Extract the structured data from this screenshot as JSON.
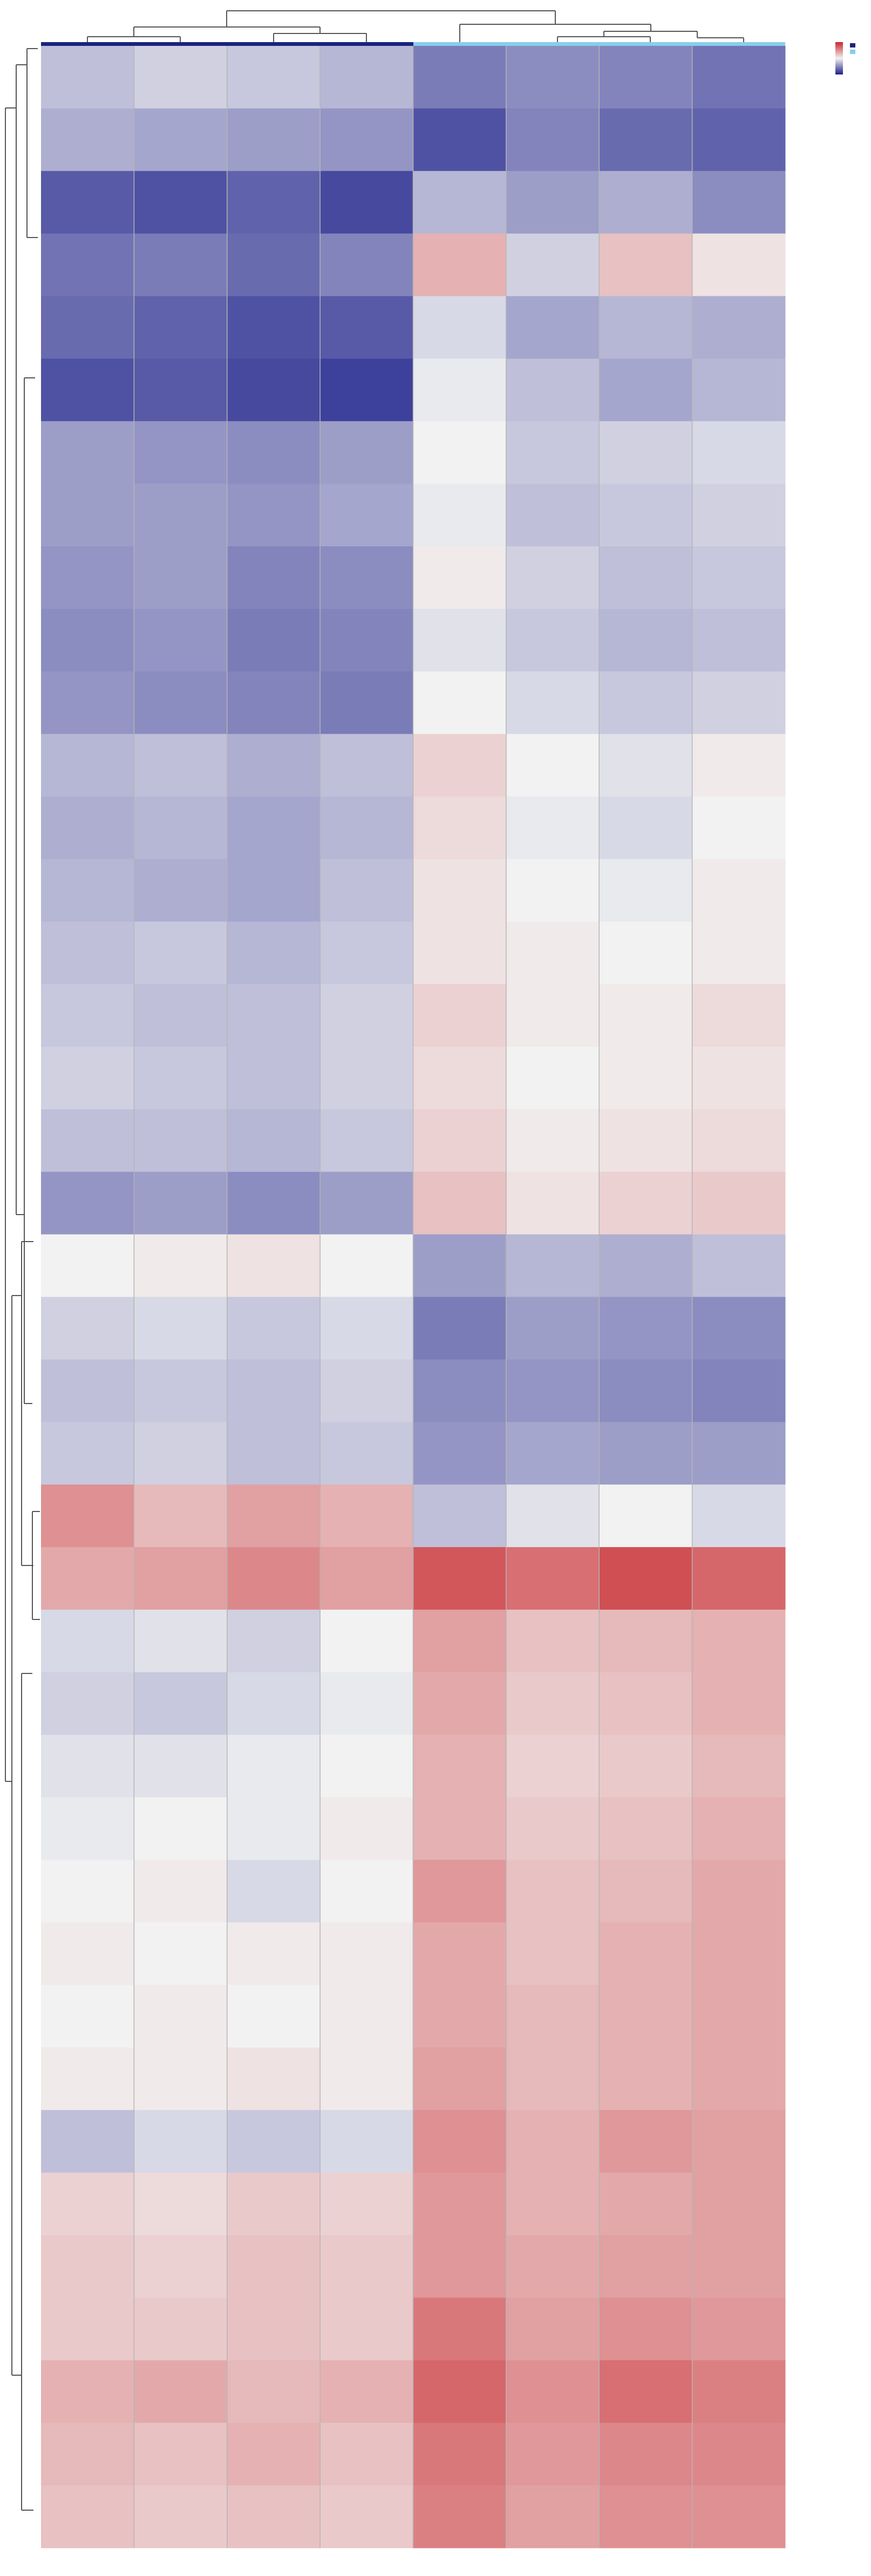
{
  "chart_data": {
    "type": "heatmap",
    "categories": [
      null,
      null,
      null,
      null,
      null,
      null,
      null,
      null
    ],
    "zlim": [
      -2.5,
      2.5
    ],
    "colors": [
      "#1c1f8a",
      "#f2f2f2",
      "#c8262b"
    ],
    "values": [
      [
        -0.6,
        -0.4,
        -0.5,
        -0.7,
        -1.4,
        -1.2,
        -1.3,
        -1.5
      ],
      [
        -0.8,
        -0.9,
        -1.0,
        -1.1,
        -1.9,
        -1.3,
        -1.6,
        -1.7
      ],
      [
        -1.8,
        -1.9,
        -1.7,
        -2.0,
        -0.7,
        -1.0,
        -0.8,
        -1.2
      ],
      [
        -1.5,
        -1.4,
        -1.6,
        -1.3,
        0.8,
        -0.4,
        0.6,
        0.2
      ],
      [
        -1.6,
        -1.7,
        -1.9,
        -1.8,
        -0.3,
        -0.9,
        -0.7,
        -0.8
      ],
      [
        -1.9,
        -1.8,
        -2.0,
        -2.1,
        -0.1,
        -0.6,
        -0.9,
        -0.7
      ],
      [
        -1.0,
        -1.1,
        -1.2,
        -1.0,
        0.0,
        -0.5,
        -0.4,
        -0.3
      ],
      [
        -1.0,
        -1.0,
        -1.1,
        -0.9,
        -0.1,
        -0.6,
        -0.5,
        -0.4
      ],
      [
        -1.1,
        -1.0,
        -1.3,
        -1.2,
        0.1,
        -0.4,
        -0.6,
        -0.5
      ],
      [
        -1.2,
        -1.1,
        -1.4,
        -1.3,
        -0.2,
        -0.5,
        -0.7,
        -0.6
      ],
      [
        -1.1,
        -1.2,
        -1.3,
        -1.4,
        0.0,
        -0.3,
        -0.5,
        -0.4
      ],
      [
        -0.7,
        -0.6,
        -0.8,
        -0.6,
        0.4,
        0.0,
        -0.2,
        0.1
      ],
      [
        -0.8,
        -0.7,
        -0.9,
        -0.7,
        0.3,
        -0.1,
        -0.3,
        0.0
      ],
      [
        -0.7,
        -0.8,
        -0.9,
        -0.6,
        0.2,
        0.0,
        -0.1,
        0.1
      ],
      [
        -0.6,
        -0.5,
        -0.7,
        -0.5,
        0.2,
        0.1,
        0.0,
        0.1
      ],
      [
        -0.5,
        -0.6,
        -0.6,
        -0.4,
        0.4,
        0.1,
        0.1,
        0.3
      ],
      [
        -0.4,
        -0.5,
        -0.6,
        -0.4,
        0.3,
        0.0,
        0.1,
        0.2
      ],
      [
        -0.6,
        -0.6,
        -0.7,
        -0.5,
        0.4,
        0.1,
        0.2,
        0.3
      ],
      [
        -1.1,
        -1.0,
        -1.2,
        -1.0,
        0.6,
        0.2,
        0.4,
        0.5
      ],
      [
        0.0,
        0.1,
        0.2,
        0.0,
        -1.0,
        -0.7,
        -0.8,
        -0.6
      ],
      [
        -0.4,
        -0.3,
        -0.5,
        -0.3,
        -1.4,
        -1.0,
        -1.1,
        -1.2
      ],
      [
        -0.6,
        -0.5,
        -0.6,
        -0.4,
        -1.2,
        -1.1,
        -1.2,
        -1.3
      ],
      [
        -0.5,
        -0.4,
        -0.6,
        -0.5,
        -1.1,
        -0.9,
        -1.0,
        -1.0
      ],
      [
        1.2,
        0.7,
        1.0,
        0.8,
        -0.6,
        -0.2,
        0.0,
        -0.3
      ],
      [
        0.9,
        1.0,
        1.3,
        1.0,
        1.9,
        1.6,
        2.0,
        1.7
      ],
      [
        -0.3,
        -0.2,
        -0.4,
        0.0,
        1.0,
        0.6,
        0.7,
        0.8
      ],
      [
        -0.4,
        -0.5,
        -0.3,
        -0.1,
        0.9,
        0.5,
        0.6,
        0.8
      ],
      [
        -0.2,
        -0.2,
        -0.1,
        0.0,
        0.8,
        0.4,
        0.5,
        0.7
      ],
      [
        -0.1,
        0.0,
        -0.1,
        0.1,
        0.8,
        0.5,
        0.6,
        0.8
      ],
      [
        0.0,
        0.1,
        -0.3,
        0.0,
        1.1,
        0.6,
        0.7,
        0.9
      ],
      [
        0.1,
        0.0,
        0.1,
        0.1,
        0.9,
        0.6,
        0.8,
        0.9
      ],
      [
        0.0,
        0.1,
        0.0,
        0.1,
        0.9,
        0.7,
        0.8,
        0.9
      ],
      [
        0.1,
        0.1,
        0.2,
        0.1,
        1.0,
        0.7,
        0.8,
        0.9
      ],
      [
        -0.6,
        -0.3,
        -0.5,
        -0.3,
        1.2,
        0.8,
        1.1,
        1.0
      ],
      [
        0.4,
        0.3,
        0.5,
        0.4,
        1.1,
        0.8,
        0.9,
        1.0
      ],
      [
        0.5,
        0.4,
        0.6,
        0.5,
        1.1,
        0.9,
        1.0,
        1.0
      ],
      [
        0.5,
        0.5,
        0.6,
        0.5,
        1.5,
        1.0,
        1.2,
        1.1
      ],
      [
        0.8,
        0.9,
        0.7,
        0.8,
        1.7,
        1.2,
        1.6,
        1.4
      ],
      [
        0.7,
        0.6,
        0.8,
        0.6,
        1.5,
        1.1,
        1.3,
        1.3
      ],
      [
        0.6,
        0.5,
        0.6,
        0.5,
        1.4,
        1.0,
        1.2,
        1.2
      ]
    ]
  }
}
